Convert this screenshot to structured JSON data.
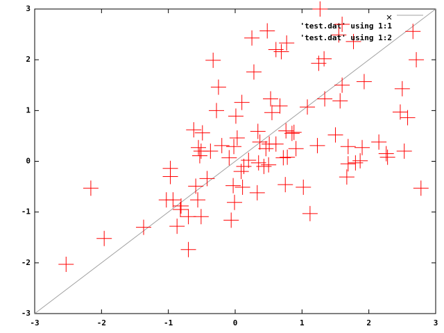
{
  "chart_data": {
    "type": "scatter",
    "xlim": [
      -3,
      3
    ],
    "ylim": [
      -3,
      3
    ],
    "xticks": [
      -3,
      -2,
      -1,
      0,
      1,
      2,
      3
    ],
    "yticks": [
      -3,
      -2,
      -1,
      0,
      1,
      2,
      3
    ],
    "legend": "top-right",
    "series": [
      {
        "name": "'test.dat' using 1:1",
        "color": "#a0a0a0",
        "mode": "lines",
        "x": [
          -3,
          3
        ],
        "values": [
          -3,
          3
        ]
      },
      {
        "name": "'test.dat' using 1:2",
        "color": "#ff0000",
        "mode": "points",
        "x": [
          1.27,
          0.48,
          0.25,
          0.61,
          0.69,
          0.77,
          -0.33,
          0.28,
          -0.25,
          0.1,
          -0.28,
          0.01,
          0.53,
          0.55,
          0.67,
          -0.62,
          -0.49,
          -0.55,
          -0.51,
          -0.53,
          -0.37,
          -0.2,
          -0.02,
          0.03,
          0.34,
          0.37,
          0.46,
          0.51,
          0.61,
          0.72,
          0.76,
          0.85,
          0.88,
          0.91,
          1.08,
          1.34,
          1.57,
          1.6,
          1.93,
          2.5,
          2.47,
          2.58,
          1.25,
          1.33,
          1.6,
          1.55,
          1.77,
          2.66,
          2.71,
          1.5,
          1.23,
          1.69,
          1.9,
          2.15,
          2.26,
          2.28,
          2.53,
          1.8,
          1.69,
          1.87,
          1.67,
          2.78,
          1.12,
          1.02,
          0.75,
          0.33,
          0.09,
          0.13,
          0.11,
          -0.03,
          -0.01,
          -0.06,
          -0.42,
          -0.59,
          -0.56,
          -0.51,
          -0.7,
          -0.81,
          -0.87,
          -0.97,
          -0.97,
          -1.03,
          -0.93,
          -0.82,
          -0.7,
          -1.37,
          -1.96,
          -2.16,
          -2.53,
          0.35,
          0.43,
          0.5,
          0.2,
          -0.09,
          0.78
        ],
        "values": [
          3.0,
          2.57,
          2.43,
          2.2,
          2.16,
          2.33,
          1.99,
          1.76,
          1.46,
          1.16,
          1.0,
          0.89,
          1.23,
          0.96,
          1.09,
          0.62,
          0.56,
          0.27,
          0.2,
          0.11,
          0.2,
          0.31,
          0.29,
          0.46,
          0.59,
          0.38,
          0.25,
          0.34,
          0.34,
          0.07,
          0.6,
          0.55,
          0.57,
          0.25,
          1.07,
          1.23,
          1.19,
          1.5,
          1.57,
          1.43,
          0.97,
          0.86,
          1.93,
          2.02,
          2.7,
          2.49,
          2.36,
          2.56,
          2.0,
          0.52,
          0.31,
          0.29,
          0.27,
          0.38,
          0.15,
          0.08,
          0.2,
          -0.03,
          -0.05,
          0.01,
          -0.31,
          -0.53,
          -1.03,
          -0.51,
          -0.46,
          -0.62,
          -0.2,
          -0.1,
          -0.51,
          -0.48,
          -0.81,
          -1.16,
          -0.34,
          -0.49,
          -0.76,
          -1.09,
          -1.09,
          -0.88,
          -1.28,
          -0.14,
          -0.3,
          -0.76,
          -0.76,
          -0.95,
          -1.74,
          -1.3,
          -1.52,
          -0.53,
          -2.03,
          -0.03,
          -0.1,
          -0.07,
          0.02,
          0.07,
          0.08
        ]
      }
    ]
  }
}
